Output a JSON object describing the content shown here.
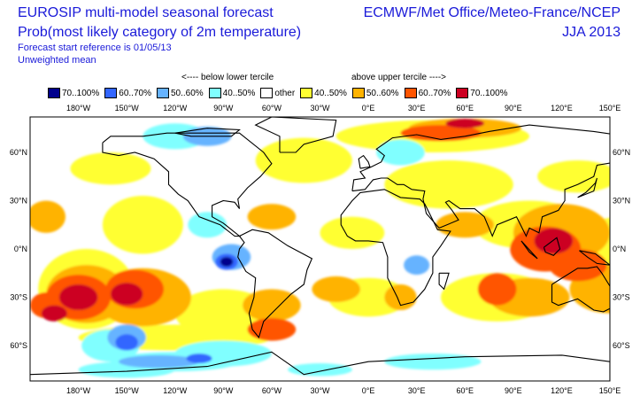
{
  "header": {
    "title_line1": "EUROSIP multi-model seasonal forecast",
    "title_line2": "Prob(most likely category of 2m temperature)",
    "start_ref": "Forecast start reference is 01/05/13",
    "mean_type": "Unweighted mean",
    "centres": "ECMWF/Met Office/Meteo-France/NCEP",
    "season": "JJA 2013"
  },
  "terciles": {
    "below": "<---- below lower tercile",
    "above": "above upper tercile ---->"
  },
  "legend": [
    {
      "label": "70..100%",
      "color": "#00008c"
    },
    {
      "label": "60..70%",
      "color": "#3366ff"
    },
    {
      "label": "50..60%",
      "color": "#66b3ff"
    },
    {
      "label": "40..50%",
      "color": "#80ffff"
    },
    {
      "label": "other",
      "color": "#ffffff"
    },
    {
      "label": "40..50%",
      "color": "#ffff33"
    },
    {
      "label": "50..60%",
      "color": "#ffb300"
    },
    {
      "label": "60..70%",
      "color": "#ff5500"
    },
    {
      "label": "70..100%",
      "color": "#cc0022"
    }
  ],
  "map": {
    "lon_ticks": [
      "180°W",
      "150°W",
      "120°W",
      "90°W",
      "60°W",
      "30°W",
      "0°E",
      "30°E",
      "60°E",
      "90°E",
      "120°E",
      "150°E"
    ],
    "lat_ticks": [
      "60°N",
      "30°N",
      "0°N",
      "30°S",
      "60°S"
    ]
  }
}
